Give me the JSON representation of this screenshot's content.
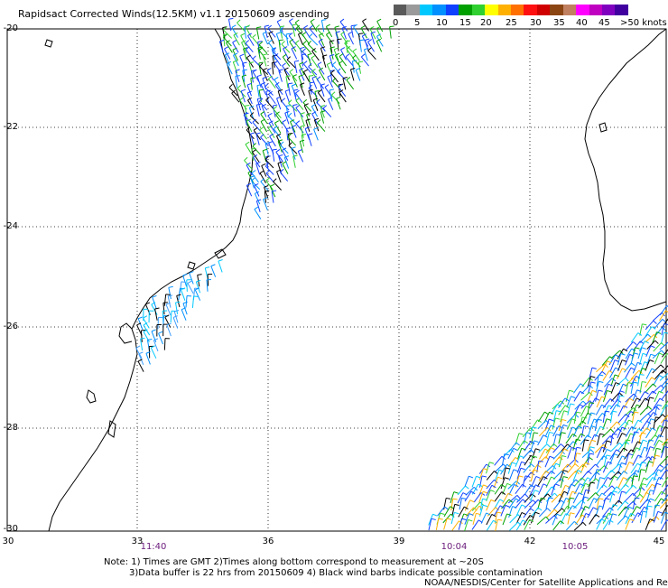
{
  "title": "Rapidsact Corrected Winds(12.5KM) v1.1 20150609 ascending",
  "colorbar": {
    "colors": [
      "#5a5a5a",
      "#9a9a9a",
      "#00c8ff",
      "#0090ff",
      "#1040ff",
      "#00a000",
      "#30d030",
      "#ffff00",
      "#ffb000",
      "#ff7000",
      "#ff1010",
      "#d00000",
      "#8b4513",
      "#c08060",
      "#ff00ff",
      "#c000c0",
      "#8000c0",
      "#4000a0"
    ],
    "labels": [
      "0",
      "5",
      "10",
      "15",
      "20",
      "25",
      "30",
      "35",
      "40",
      "45",
      ">50 knots"
    ]
  },
  "map": {
    "lat_labels": [
      "-20",
      "-22",
      "-24",
      "-26",
      "-28",
      "-30"
    ],
    "lon_labels": [
      "30",
      "33",
      "36",
      "39",
      "42",
      "45"
    ],
    "time_labels": [
      "11:40",
      "10:04",
      "10:05"
    ]
  },
  "notes": [
    "Note: 1) Times are GMT 2)Times along bottom correspond to measurement at ~20S",
    "3)Data buffer is 22 hrs from 20150609 4) Black wind barbs indicate possible contamination"
  ],
  "credit": "NOAA/NESDIS/Center for Satellite Applications and Resea"
}
